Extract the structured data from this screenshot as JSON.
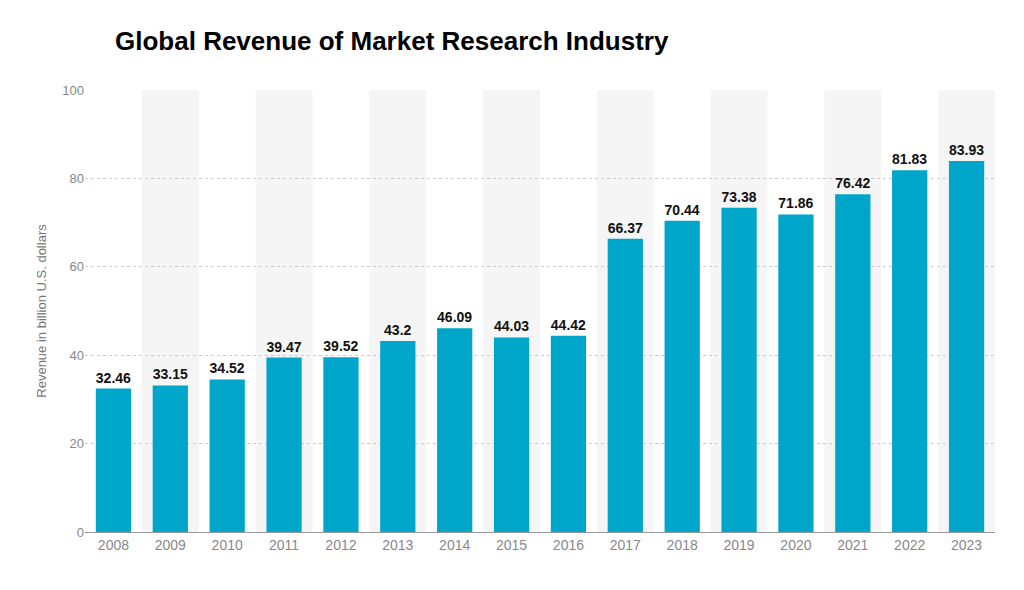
{
  "chart_data": {
    "type": "bar",
    "title": "Global Revenue of Market Research Industry",
    "y_label": "Revenue in billion U.S. dollars",
    "categories": [
      "2008",
      "2009",
      "2010",
      "2011",
      "2012",
      "2013",
      "2014",
      "2015",
      "2016",
      "2017",
      "2018",
      "2019",
      "2020",
      "2021",
      "2022",
      "2023"
    ],
    "values": [
      32.46,
      33.15,
      34.52,
      39.47,
      39.52,
      43.2,
      46.09,
      44.03,
      44.42,
      66.37,
      70.44,
      73.38,
      71.86,
      76.42,
      81.83,
      83.93
    ],
    "color": "#00a6c9",
    "ylim": [
      0,
      100
    ],
    "yticks": [
      0,
      20,
      40,
      60,
      80,
      100
    ],
    "grid": true,
    "data_labels": true
  }
}
